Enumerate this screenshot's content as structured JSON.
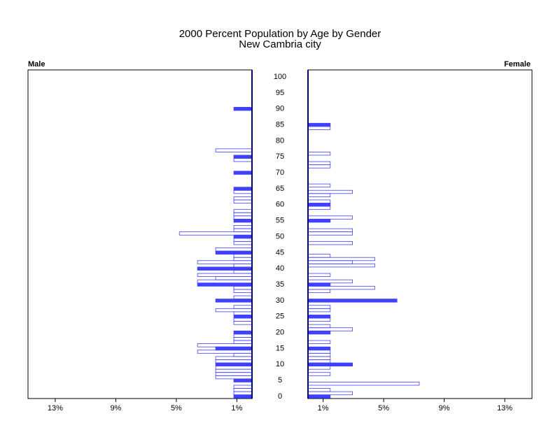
{
  "chart_data": {
    "type": "pyramid",
    "title": "2000 Percent Population by Age by Gender",
    "subtitle": "New Cambria city",
    "categories": [
      0,
      1,
      2,
      3,
      4,
      5,
      6,
      7,
      8,
      9,
      10,
      11,
      12,
      13,
      14,
      15,
      16,
      17,
      18,
      19,
      20,
      21,
      22,
      23,
      24,
      25,
      26,
      27,
      28,
      29,
      30,
      31,
      32,
      33,
      34,
      35,
      36,
      37,
      38,
      39,
      40,
      41,
      42,
      43,
      44,
      45,
      46,
      47,
      48,
      49,
      50,
      51,
      52,
      53,
      54,
      55,
      56,
      57,
      58,
      59,
      60,
      61,
      62,
      63,
      64,
      65,
      66,
      67,
      68,
      69,
      70,
      71,
      72,
      73,
      74,
      75,
      76,
      77,
      78,
      79,
      80,
      81,
      82,
      83,
      84,
      85,
      86,
      87,
      88,
      89,
      90,
      91,
      92,
      93,
      94,
      95,
      96,
      97,
      98,
      99,
      100
    ],
    "ylim": [
      0,
      100
    ],
    "yticks": [
      0,
      5,
      10,
      15,
      20,
      25,
      30,
      35,
      40,
      45,
      50,
      55,
      60,
      65,
      70,
      75,
      80,
      85,
      90,
      95,
      100
    ],
    "xlim": [
      0,
      14.8
    ],
    "xticks": [
      {
        "value": 1,
        "label": "1%"
      },
      {
        "value": 5,
        "label": "5%"
      },
      {
        "value": 9,
        "label": "9%"
      },
      {
        "value": 13,
        "label": "13%"
      }
    ],
    "series": [
      {
        "name": "Male",
        "color": "#4040ff",
        "values": [
          1.2,
          1.2,
          1.2,
          1.2,
          0,
          1.2,
          2.4,
          2.4,
          2.4,
          2.4,
          2.4,
          2.4,
          2.4,
          1.2,
          3.6,
          2.4,
          3.6,
          1.2,
          1.2,
          1.2,
          1.2,
          0,
          0,
          1.2,
          1.2,
          1.2,
          1.2,
          2.4,
          1.2,
          0,
          2.4,
          1.2,
          0,
          1.2,
          1.2,
          3.6,
          3.6,
          2.4,
          3.6,
          1.2,
          3.6,
          1.2,
          3.6,
          1.2,
          1.2,
          2.4,
          2.4,
          0,
          1.2,
          1.2,
          1.2,
          4.8,
          1.2,
          1.2,
          0,
          1.2,
          1.2,
          1.2,
          1.2,
          0,
          0,
          1.2,
          1.2,
          0,
          1.2,
          1.2,
          0,
          0,
          0,
          0,
          1.2,
          0,
          0,
          0,
          1.2,
          1.2,
          0,
          2.4,
          0,
          0,
          0,
          0,
          0,
          0,
          0,
          0,
          0,
          0,
          0,
          0,
          1.2,
          0,
          0,
          0,
          0,
          0,
          0,
          0,
          0,
          0,
          0
        ]
      },
      {
        "name": "Female",
        "color": "#4040ff",
        "values": [
          1.47,
          2.94,
          1.47,
          0,
          7.35,
          0,
          0,
          1.47,
          0,
          1.47,
          2.94,
          1.47,
          1.47,
          1.47,
          1.47,
          1.47,
          0,
          1.47,
          0,
          0,
          1.47,
          2.94,
          1.47,
          0,
          1.47,
          1.47,
          0,
          1.47,
          1.47,
          0,
          5.88,
          0,
          0,
          1.47,
          4.41,
          1.47,
          2.94,
          0,
          1.47,
          0,
          0,
          4.41,
          2.94,
          4.41,
          1.47,
          0,
          0,
          0,
          2.94,
          0,
          0,
          2.94,
          2.94,
          0,
          0,
          1.47,
          2.94,
          0,
          0,
          1.47,
          1.47,
          1.47,
          0,
          1.47,
          2.94,
          0,
          1.47,
          0,
          0,
          0,
          0,
          0,
          1.47,
          1.47,
          0,
          0,
          1.47,
          0,
          0,
          0,
          0,
          0,
          0,
          0,
          1.47,
          1.47,
          0,
          0,
          0,
          0,
          0,
          0,
          0,
          0,
          0,
          0,
          0,
          0,
          0,
          0,
          0
        ]
      }
    ]
  }
}
